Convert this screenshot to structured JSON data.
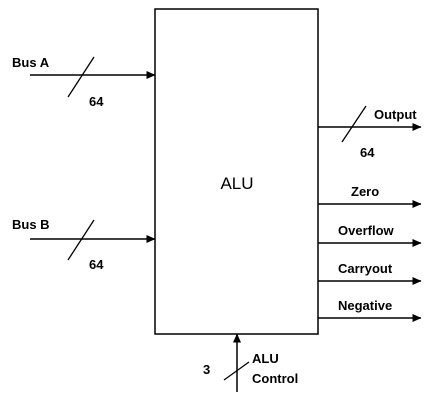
{
  "alu": {
    "label": "ALU"
  },
  "inputs": {
    "bus_a": {
      "label": "Bus A",
      "width": "64"
    },
    "bus_b": {
      "label": "Bus B",
      "width": "64"
    },
    "alu_control": {
      "label_line1": "ALU",
      "label_line2": "Control",
      "width": "3"
    }
  },
  "outputs": {
    "output": {
      "label": "Output",
      "width": "64"
    },
    "zero": {
      "label": "Zero"
    },
    "overflow": {
      "label": "Overflow"
    },
    "carryout": {
      "label": "Carryout"
    },
    "negative": {
      "label": "Negative"
    }
  }
}
